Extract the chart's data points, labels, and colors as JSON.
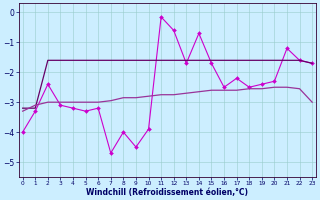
{
  "xlabel": "Windchill (Refroidissement éolien,°C)",
  "x": [
    0,
    1,
    2,
    3,
    4,
    5,
    6,
    7,
    8,
    9,
    10,
    11,
    12,
    13,
    14,
    15,
    16,
    17,
    18,
    19,
    20,
    21,
    22,
    23
  ],
  "line1": [
    -4.0,
    -3.3,
    -2.4,
    -3.1,
    -3.2,
    -3.3,
    -3.2,
    -4.7,
    -4.0,
    -4.5,
    -3.9,
    -0.15,
    -0.6,
    -1.7,
    -0.7,
    -1.7,
    -2.5,
    -2.2,
    -2.5,
    -2.4,
    -2.3,
    -1.2,
    -1.6,
    -1.7
  ],
  "line2": [
    -3.2,
    -3.2,
    -1.6,
    -1.6,
    -1.6,
    -1.6,
    -1.6,
    -1.6,
    -1.6,
    -1.6,
    -1.6,
    -1.6,
    -1.6,
    -1.6,
    -1.6,
    -1.6,
    -1.6,
    -1.6,
    -1.6,
    -1.6,
    -1.6,
    -1.6,
    -1.6,
    -1.7
  ],
  "line3": [
    -3.3,
    -3.1,
    -3.0,
    -3.0,
    -3.0,
    -3.0,
    -3.0,
    -2.95,
    -2.85,
    -2.85,
    -2.8,
    -2.75,
    -2.75,
    -2.7,
    -2.65,
    -2.6,
    -2.6,
    -2.6,
    -2.55,
    -2.55,
    -2.5,
    -2.5,
    -2.55,
    -3.0
  ],
  "line1_color": "#cc00cc",
  "line2_color": "#660066",
  "line3_color": "#993399",
  "bg_color": "#cceeff",
  "grid_color": "#99cccc",
  "axis_color": "#330033",
  "text_color": "#000066",
  "ylim": [
    -5.5,
    0.3
  ],
  "yticks": [
    0,
    -1,
    -2,
    -3,
    -4,
    -5
  ],
  "xlim": [
    -0.3,
    23.3
  ]
}
